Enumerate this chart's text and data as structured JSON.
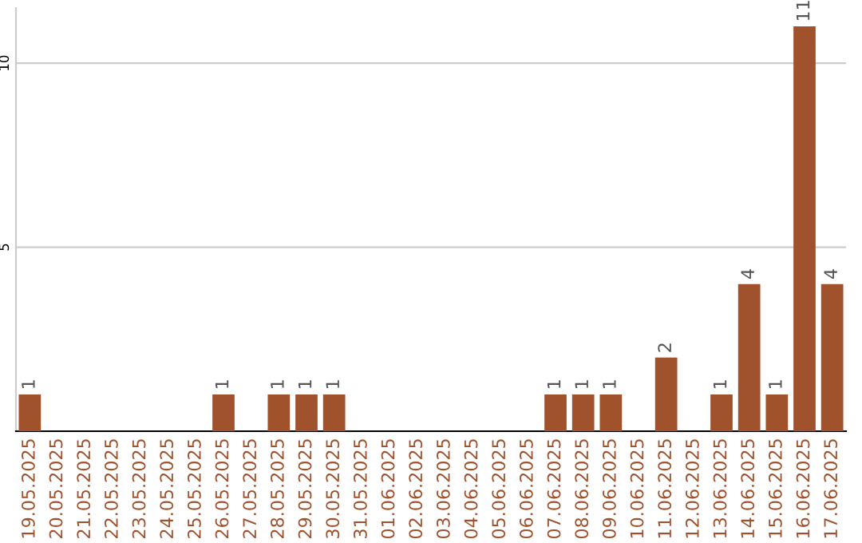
{
  "chart_data": {
    "type": "bar",
    "categories": [
      "19.05.2025",
      "20.05.2025",
      "21.05.2025",
      "22.05.2025",
      "23.05.2025",
      "24.05.2025",
      "25.05.2025",
      "26.05.2025",
      "27.05.2025",
      "28.05.2025",
      "29.05.2025",
      "30.05.2025",
      "31.05.2025",
      "01.06.2025",
      "02.06.2025",
      "03.06.2025",
      "04.06.2025",
      "05.06.2025",
      "06.06.2025",
      "07.06.2025",
      "08.06.2025",
      "09.06.2025",
      "10.06.2025",
      "11.06.2025",
      "12.06.2025",
      "13.06.2025",
      "14.06.2025",
      "15.06.2025",
      "16.06.2025",
      "17.06.2025"
    ],
    "values": [
      1,
      0,
      0,
      0,
      0,
      0,
      0,
      1,
      0,
      1,
      1,
      1,
      0,
      0,
      0,
      0,
      0,
      0,
      0,
      1,
      1,
      1,
      0,
      2,
      0,
      1,
      4,
      1,
      11,
      4
    ],
    "value_labels": [
      "1",
      null,
      null,
      null,
      null,
      null,
      null,
      "1",
      null,
      "1",
      "1",
      "1",
      null,
      null,
      null,
      null,
      null,
      null,
      null,
      "1",
      "1",
      "1",
      null,
      "2",
      null,
      "1",
      "4",
      "1",
      "11",
      "4"
    ],
    "color": "#a0522d",
    "ylim": [
      0,
      11.5
    ],
    "yticks": [
      5,
      10
    ],
    "grid": "y",
    "legend": false
  }
}
